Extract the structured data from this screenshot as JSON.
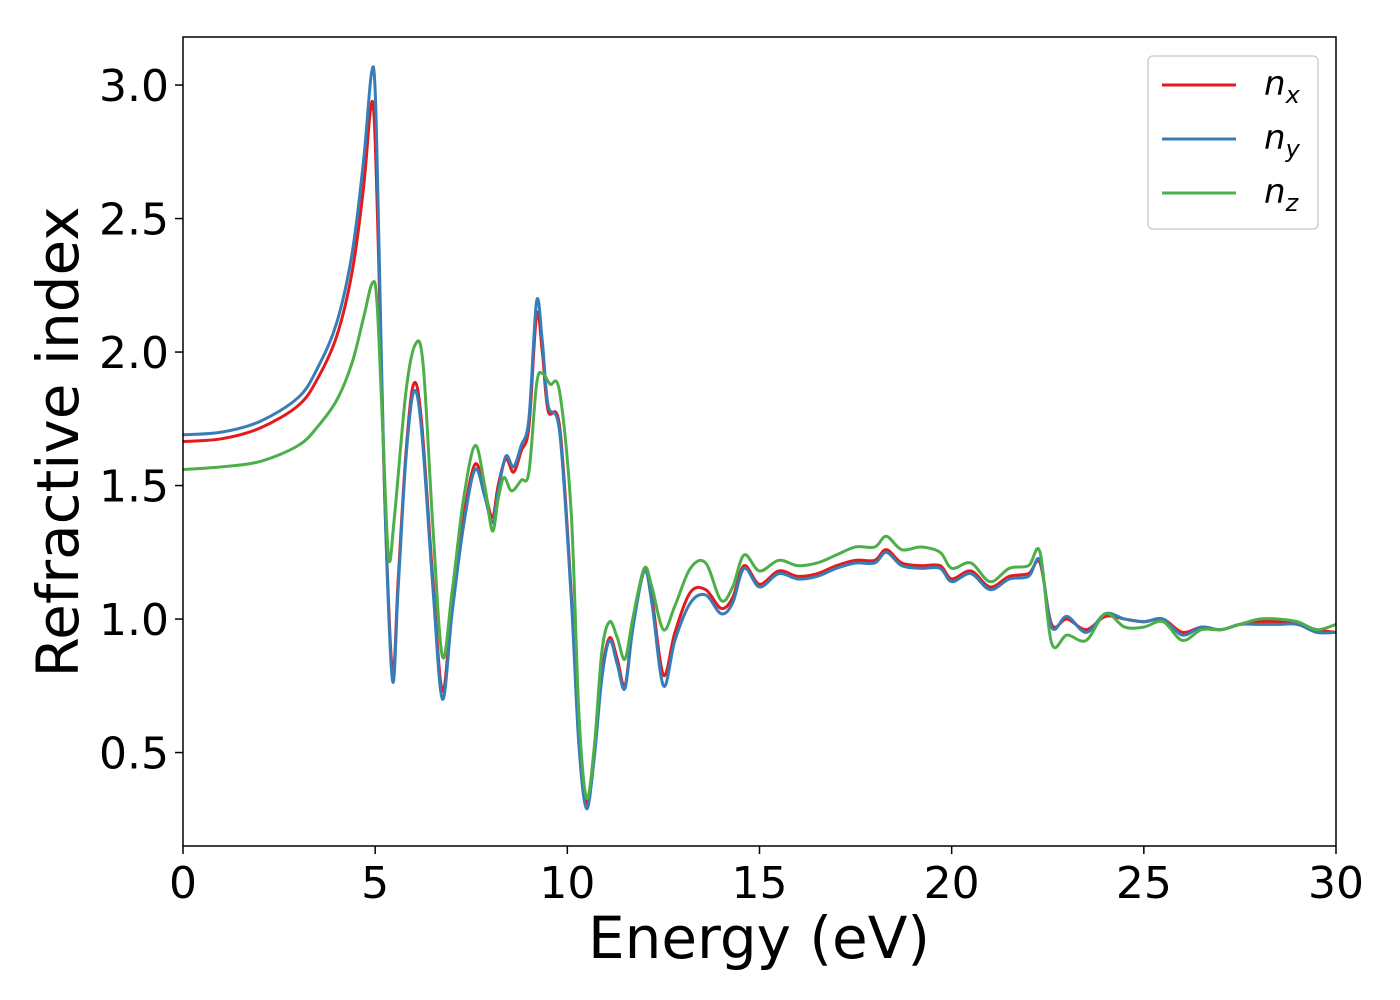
{
  "chart_data": {
    "type": "line",
    "title": "",
    "xlabel": "Energy (eV)",
    "ylabel": "Refractive index",
    "xlim": [
      0,
      30
    ],
    "ylim": [
      0.15,
      3.18
    ],
    "xticks": [
      0,
      5,
      10,
      15,
      20,
      25,
      30
    ],
    "yticks": [
      0.5,
      1.0,
      1.5,
      2.0,
      2.5,
      3.0
    ],
    "xtick_labels": [
      "0",
      "5",
      "10",
      "15",
      "20",
      "25",
      "30"
    ],
    "ytick_labels": [
      "0.5",
      "1.0",
      "1.5",
      "2.0",
      "2.5",
      "3.0"
    ],
    "grid": false,
    "legend_position": "top-right",
    "series": [
      {
        "name": "n",
        "subscript": "x",
        "color": "#e41a1c",
        "points": [
          [
            0,
            1.665
          ],
          [
            1,
            1.675
          ],
          [
            2,
            1.715
          ],
          [
            3,
            1.8
          ],
          [
            3.5,
            1.9
          ],
          [
            4,
            2.06
          ],
          [
            4.4,
            2.3
          ],
          [
            4.7,
            2.62
          ],
          [
            4.88,
            2.91
          ],
          [
            4.98,
            2.86
          ],
          [
            5.1,
            2.3
          ],
          [
            5.25,
            1.45
          ],
          [
            5.45,
            0.8
          ],
          [
            5.6,
            1.15
          ],
          [
            5.8,
            1.62
          ],
          [
            6.0,
            1.88
          ],
          [
            6.2,
            1.75
          ],
          [
            6.5,
            1.15
          ],
          [
            6.75,
            0.73
          ],
          [
            7.0,
            1.05
          ],
          [
            7.3,
            1.38
          ],
          [
            7.6,
            1.58
          ],
          [
            7.85,
            1.48
          ],
          [
            8.05,
            1.38
          ],
          [
            8.2,
            1.5
          ],
          [
            8.4,
            1.6
          ],
          [
            8.6,
            1.55
          ],
          [
            8.8,
            1.63
          ],
          [
            9.0,
            1.72
          ],
          [
            9.2,
            2.14
          ],
          [
            9.35,
            2.0
          ],
          [
            9.5,
            1.78
          ],
          [
            9.8,
            1.72
          ],
          [
            10.1,
            1.1
          ],
          [
            10.3,
            0.55
          ],
          [
            10.5,
            0.31
          ],
          [
            10.7,
            0.5
          ],
          [
            10.9,
            0.8
          ],
          [
            11.1,
            0.93
          ],
          [
            11.3,
            0.85
          ],
          [
            11.5,
            0.75
          ],
          [
            11.7,
            0.97
          ],
          [
            12.0,
            1.18
          ],
          [
            12.2,
            1.08
          ],
          [
            12.5,
            0.79
          ],
          [
            12.8,
            0.95
          ],
          [
            13.2,
            1.1
          ],
          [
            13.6,
            1.11
          ],
          [
            14.0,
            1.04
          ],
          [
            14.3,
            1.08
          ],
          [
            14.6,
            1.2
          ],
          [
            15.0,
            1.13
          ],
          [
            15.5,
            1.18
          ],
          [
            16.0,
            1.16
          ],
          [
            16.5,
            1.17
          ],
          [
            17.0,
            1.2
          ],
          [
            17.5,
            1.22
          ],
          [
            18.0,
            1.22
          ],
          [
            18.3,
            1.26
          ],
          [
            18.7,
            1.21
          ],
          [
            19.2,
            1.2
          ],
          [
            19.7,
            1.2
          ],
          [
            20.0,
            1.15
          ],
          [
            20.5,
            1.18
          ],
          [
            21.0,
            1.12
          ],
          [
            21.5,
            1.16
          ],
          [
            22.0,
            1.17
          ],
          [
            22.3,
            1.21
          ],
          [
            22.6,
            0.98
          ],
          [
            23.0,
            1.0
          ],
          [
            23.5,
            0.96
          ],
          [
            24.0,
            1.01
          ],
          [
            24.5,
            1.0
          ],
          [
            25.0,
            0.99
          ],
          [
            25.5,
            1.0
          ],
          [
            26.0,
            0.95
          ],
          [
            26.5,
            0.97
          ],
          [
            27.0,
            0.96
          ],
          [
            27.5,
            0.98
          ],
          [
            28.0,
            0.99
          ],
          [
            28.5,
            0.99
          ],
          [
            29.0,
            0.98
          ],
          [
            29.5,
            0.96
          ],
          [
            30,
            0.95
          ]
        ]
      },
      {
        "name": "n",
        "subscript": "y",
        "color": "#377eb8",
        "points": [
          [
            0,
            1.69
          ],
          [
            1,
            1.7
          ],
          [
            2,
            1.74
          ],
          [
            3,
            1.83
          ],
          [
            3.5,
            1.94
          ],
          [
            4,
            2.11
          ],
          [
            4.4,
            2.37
          ],
          [
            4.7,
            2.72
          ],
          [
            4.9,
            3.04
          ],
          [
            5.0,
            2.98
          ],
          [
            5.1,
            2.4
          ],
          [
            5.25,
            1.45
          ],
          [
            5.45,
            0.77
          ],
          [
            5.6,
            1.12
          ],
          [
            5.8,
            1.6
          ],
          [
            6.0,
            1.85
          ],
          [
            6.2,
            1.72
          ],
          [
            6.5,
            1.12
          ],
          [
            6.75,
            0.7
          ],
          [
            7.0,
            1.02
          ],
          [
            7.3,
            1.35
          ],
          [
            7.6,
            1.56
          ],
          [
            7.85,
            1.46
          ],
          [
            8.05,
            1.36
          ],
          [
            8.2,
            1.48
          ],
          [
            8.4,
            1.61
          ],
          [
            8.6,
            1.57
          ],
          [
            8.8,
            1.65
          ],
          [
            9.0,
            1.75
          ],
          [
            9.2,
            2.19
          ],
          [
            9.35,
            2.04
          ],
          [
            9.5,
            1.8
          ],
          [
            9.8,
            1.7
          ],
          [
            10.1,
            1.08
          ],
          [
            10.3,
            0.53
          ],
          [
            10.5,
            0.29
          ],
          [
            10.7,
            0.48
          ],
          [
            10.9,
            0.78
          ],
          [
            11.1,
            0.92
          ],
          [
            11.3,
            0.83
          ],
          [
            11.5,
            0.74
          ],
          [
            11.7,
            0.96
          ],
          [
            12.0,
            1.18
          ],
          [
            12.2,
            1.06
          ],
          [
            12.5,
            0.75
          ],
          [
            12.8,
            0.92
          ],
          [
            13.2,
            1.06
          ],
          [
            13.6,
            1.09
          ],
          [
            14.0,
            1.02
          ],
          [
            14.3,
            1.06
          ],
          [
            14.6,
            1.19
          ],
          [
            15.0,
            1.12
          ],
          [
            15.5,
            1.17
          ],
          [
            16.0,
            1.15
          ],
          [
            16.5,
            1.16
          ],
          [
            17.0,
            1.19
          ],
          [
            17.5,
            1.21
          ],
          [
            18.0,
            1.21
          ],
          [
            18.3,
            1.25
          ],
          [
            18.7,
            1.2
          ],
          [
            19.2,
            1.19
          ],
          [
            19.7,
            1.19
          ],
          [
            20.0,
            1.14
          ],
          [
            20.5,
            1.17
          ],
          [
            21.0,
            1.11
          ],
          [
            21.5,
            1.15
          ],
          [
            22.0,
            1.16
          ],
          [
            22.3,
            1.22
          ],
          [
            22.6,
            0.97
          ],
          [
            23.0,
            1.01
          ],
          [
            23.5,
            0.95
          ],
          [
            24.0,
            1.02
          ],
          [
            24.5,
            1.0
          ],
          [
            25.0,
            0.99
          ],
          [
            25.5,
            1.0
          ],
          [
            26.0,
            0.94
          ],
          [
            26.5,
            0.97
          ],
          [
            27.0,
            0.96
          ],
          [
            27.5,
            0.98
          ],
          [
            28.0,
            0.98
          ],
          [
            28.5,
            0.98
          ],
          [
            29.0,
            0.98
          ],
          [
            29.5,
            0.95
          ],
          [
            30,
            0.95
          ]
        ]
      },
      {
        "name": "n",
        "subscript": "z",
        "color": "#4daf4a",
        "points": [
          [
            0,
            1.56
          ],
          [
            1,
            1.57
          ],
          [
            2,
            1.59
          ],
          [
            3,
            1.65
          ],
          [
            3.5,
            1.72
          ],
          [
            4,
            1.82
          ],
          [
            4.4,
            1.96
          ],
          [
            4.7,
            2.13
          ],
          [
            4.93,
            2.26
          ],
          [
            5.05,
            2.18
          ],
          [
            5.2,
            1.7
          ],
          [
            5.35,
            1.23
          ],
          [
            5.5,
            1.38
          ],
          [
            5.8,
            1.85
          ],
          [
            6.05,
            2.03
          ],
          [
            6.25,
            1.95
          ],
          [
            6.5,
            1.35
          ],
          [
            6.75,
            0.86
          ],
          [
            7.0,
            1.1
          ],
          [
            7.3,
            1.45
          ],
          [
            7.6,
            1.65
          ],
          [
            7.85,
            1.5
          ],
          [
            8.05,
            1.33
          ],
          [
            8.2,
            1.45
          ],
          [
            8.35,
            1.53
          ],
          [
            8.55,
            1.48
          ],
          [
            8.8,
            1.52
          ],
          [
            9.0,
            1.55
          ],
          [
            9.2,
            1.88
          ],
          [
            9.35,
            1.92
          ],
          [
            9.55,
            1.88
          ],
          [
            9.8,
            1.85
          ],
          [
            10.1,
            1.4
          ],
          [
            10.3,
            0.65
          ],
          [
            10.5,
            0.33
          ],
          [
            10.7,
            0.52
          ],
          [
            10.9,
            0.88
          ],
          [
            11.1,
            0.99
          ],
          [
            11.3,
            0.93
          ],
          [
            11.5,
            0.85
          ],
          [
            11.7,
            1.0
          ],
          [
            12.0,
            1.19
          ],
          [
            12.2,
            1.12
          ],
          [
            12.5,
            0.96
          ],
          [
            12.8,
            1.05
          ],
          [
            13.2,
            1.19
          ],
          [
            13.6,
            1.21
          ],
          [
            14.0,
            1.07
          ],
          [
            14.3,
            1.12
          ],
          [
            14.6,
            1.24
          ],
          [
            15.0,
            1.18
          ],
          [
            15.5,
            1.22
          ],
          [
            16.0,
            1.2
          ],
          [
            16.5,
            1.21
          ],
          [
            17.0,
            1.24
          ],
          [
            17.5,
            1.27
          ],
          [
            18.0,
            1.27
          ],
          [
            18.3,
            1.31
          ],
          [
            18.7,
            1.26
          ],
          [
            19.2,
            1.27
          ],
          [
            19.7,
            1.25
          ],
          [
            20.0,
            1.19
          ],
          [
            20.5,
            1.21
          ],
          [
            21.0,
            1.14
          ],
          [
            21.5,
            1.19
          ],
          [
            22.0,
            1.2
          ],
          [
            22.3,
            1.25
          ],
          [
            22.6,
            0.91
          ],
          [
            23.0,
            0.94
          ],
          [
            23.5,
            0.92
          ],
          [
            24.0,
            1.02
          ],
          [
            24.5,
            0.97
          ],
          [
            25.0,
            0.97
          ],
          [
            25.5,
            0.99
          ],
          [
            26.0,
            0.92
          ],
          [
            26.5,
            0.96
          ],
          [
            27.0,
            0.96
          ],
          [
            27.5,
            0.98
          ],
          [
            28.0,
            1.0
          ],
          [
            28.5,
            1.0
          ],
          [
            29.0,
            0.99
          ],
          [
            29.5,
            0.96
          ],
          [
            30,
            0.98
          ]
        ]
      }
    ]
  }
}
